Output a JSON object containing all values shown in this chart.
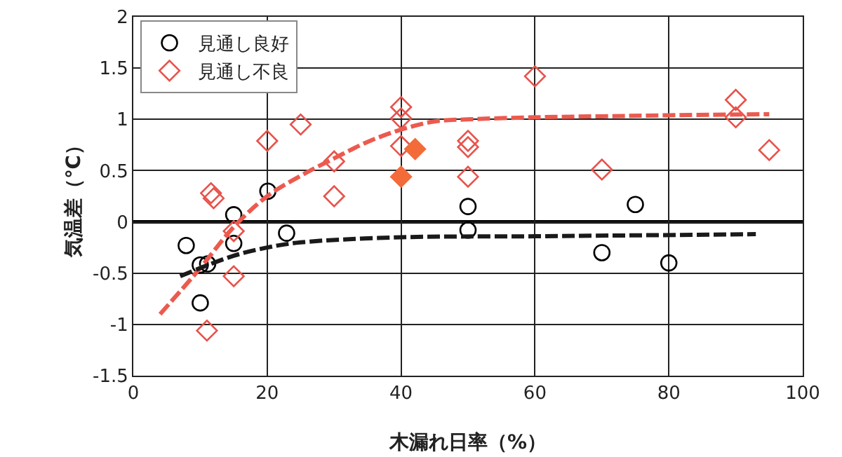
{
  "chart_data": {
    "type": "scatter",
    "xlabel": "木漏れ日率（%）",
    "ylabel": "気温差（℃）",
    "xlim": [
      0,
      100
    ],
    "xticks": [
      0,
      20,
      40,
      60,
      80,
      100
    ],
    "ylim": [
      -1.5,
      2
    ],
    "yticks": [
      -1.5,
      -1,
      -0.5,
      0,
      0.5,
      1,
      1.5,
      2
    ],
    "grid": true,
    "legend": "top left",
    "ref_lines": [
      {
        "axis": "y",
        "value": 0,
        "color": "#000000",
        "line_style": "solid"
      }
    ],
    "series": [
      {
        "name": "見通し良好",
        "color": "#000000",
        "marker": "circle",
        "x": [
          7.9,
          10,
          11.1,
          10,
          15,
          15,
          20.1,
          22.9,
          50,
          50,
          70,
          75,
          80
        ],
        "values": [
          -0.23,
          -0.42,
          -0.41,
          -0.79,
          0.07,
          -0.21,
          0.3,
          -0.11,
          0.15,
          -0.08,
          -0.3,
          0.17,
          -0.4
        ]
      },
      {
        "name": "見通し不良",
        "color": "#e8524a",
        "marker": "diamond",
        "x": [
          11.6,
          12,
          15,
          15,
          11,
          20,
          25,
          30,
          30,
          40,
          40,
          40,
          50,
          50,
          50,
          60,
          70,
          90,
          90,
          95
        ],
        "values": [
          0.28,
          0.23,
          -0.09,
          -0.53,
          -1.06,
          0.79,
          0.95,
          0.59,
          0.25,
          1.12,
          1.01,
          0.74,
          0.79,
          0.73,
          0.44,
          1.42,
          0.51,
          1.19,
          1.02,
          0.7
        ]
      },
      {
        "type": "scatter",
        "color": "#f26b38",
        "marker": "diamond",
        "x": [
          40,
          42.1
        ],
        "values": [
          0.44,
          0.71
        ]
      },
      {
        "type": "line",
        "color": "#ec5a4f",
        "line_style": "dashed",
        "marker": "none",
        "x": [
          4,
          10,
          15,
          20,
          25,
          30,
          35,
          40,
          45,
          50,
          60,
          70,
          80,
          95
        ],
        "values": [
          -0.9,
          -0.45,
          -0.05,
          0.25,
          0.45,
          0.62,
          0.78,
          0.9,
          0.98,
          1,
          1.02,
          1.03,
          1.04,
          1.05
        ]
      },
      {
        "type": "line",
        "color": "#1a1a1a",
        "line_style": "dashed",
        "marker": "none",
        "x": [
          7,
          10,
          15,
          20,
          25,
          40,
          60,
          93
        ],
        "values": [
          -0.53,
          -0.45,
          -0.33,
          -0.25,
          -0.2,
          -0.15,
          -0.14,
          -0.12
        ]
      }
    ]
  }
}
